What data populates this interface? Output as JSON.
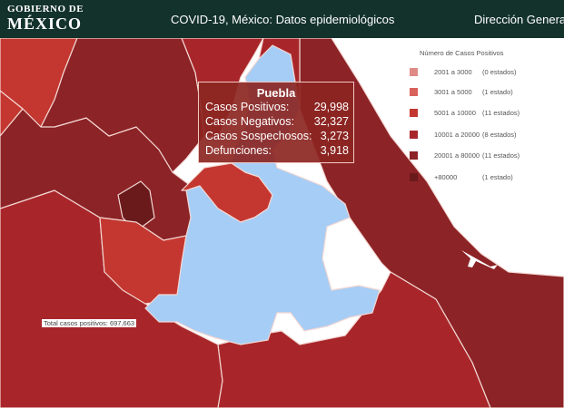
{
  "header": {
    "logo_line1": "GOBIERNO DE",
    "logo_line2": "MÉXICO",
    "title": "COVID-19, México: Datos epidemiológicos",
    "right_text": "Dirección General d"
  },
  "legend": {
    "title": "Número de Casos Positivos",
    "items": [
      {
        "range": "2001 a    3000",
        "count": "(0 estados)",
        "color": "#e08a86"
      },
      {
        "range": "3001 a    5000",
        "count": "(1 estado)",
        "color": "#d9625d"
      },
      {
        "range": "5001 a  10000",
        "count": "(11 estados)",
        "color": "#c43730"
      },
      {
        "range": "10001 a   20000",
        "count": "(8 estados)",
        "color": "#a8262a"
      },
      {
        "range": "20001 a  80000",
        "count": "(11 estados)",
        "color": "#8c2326"
      },
      {
        "range": "+80000",
        "count": "(1 estado)",
        "color": "#6b1a1c"
      }
    ]
  },
  "tooltip": {
    "state": "Puebla",
    "rows": [
      {
        "label": "Casos Positivos:",
        "value": "29,998"
      },
      {
        "label": "Casos Negativos:",
        "value": "32,327"
      },
      {
        "label": "Casos Sospechosos:",
        "value": "3,273"
      },
      {
        "label": "Defunciones:",
        "value": "3,918"
      }
    ]
  },
  "total_label": "Total casos positivos: 697,663",
  "colors": {
    "header_bg": "#13322b",
    "highlight": "#a6cdf5",
    "border": "#f3d7d3"
  }
}
